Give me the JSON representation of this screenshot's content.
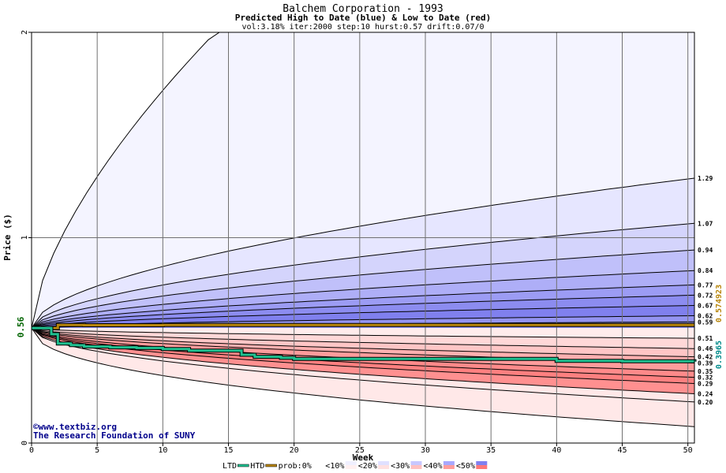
{
  "chart_data": {
    "type": "area",
    "title": "Balchem Corporation - 1993",
    "subtitle": "Predicted High to Date (blue) &  Low to Date (red)",
    "params": "vol:3.18% iter:2000 step:10 hurst:0.57 drift:0.07/0",
    "xlabel": "Week",
    "ylabel": "Price ($)",
    "xlim": [
      0,
      50.5
    ],
    "ylim": [
      0,
      2
    ],
    "x_ticks": [
      "0",
      "5",
      "10",
      "15",
      "20",
      "25",
      "30",
      "35",
      "40",
      "45",
      "50"
    ],
    "y_ticks": [
      "0",
      "1",
      "2"
    ],
    "start_price_label": "0.56",
    "start_price": 0.56,
    "right_vertical_labels": [
      {
        "text": "0.3965",
        "color": "#008b8b"
      },
      {
        "text": "0.574923",
        "color": "#b8860b"
      }
    ],
    "upper_quantiles": [
      {
        "label": "1.29",
        "end": 1.29,
        "curve": 0.55
      },
      {
        "label": "1.07",
        "end": 1.07,
        "curve": 0.55
      },
      {
        "label": "0.94",
        "end": 0.94,
        "curve": 0.55
      },
      {
        "label": "0.84",
        "end": 0.84,
        "curve": 0.55
      },
      {
        "label": "0.77",
        "end": 0.77,
        "curve": 0.55
      },
      {
        "label": "0.72",
        "end": 0.72,
        "curve": 0.55
      },
      {
        "label": "0.67",
        "end": 0.67,
        "curve": 0.55
      },
      {
        "label": "0.62",
        "end": 0.62,
        "curve": 0.55
      },
      {
        "label": "0.59",
        "end": 0.59,
        "curve": 0.55
      }
    ],
    "lower_quantiles": [
      {
        "label": "0.51",
        "end": 0.51,
        "curve": 0.5
      },
      {
        "label": "0.46",
        "end": 0.46,
        "curve": 0.5
      },
      {
        "label": "0.42",
        "end": 0.42,
        "curve": 0.5
      },
      {
        "label": "0.39",
        "end": 0.39,
        "curve": 0.5
      },
      {
        "label": "0.35",
        "end": 0.35,
        "curve": 0.5
      },
      {
        "label": "0.32",
        "end": 0.32,
        "curve": 0.5
      },
      {
        "label": "0.29",
        "end": 0.29,
        "curve": 0.5
      },
      {
        "label": "0.24",
        "end": 0.24,
        "curve": 0.5
      },
      {
        "label": "0.20",
        "end": 0.2,
        "curve": 0.5
      }
    ],
    "outer_high": {
      "reach_top_week": 14,
      "end": 2.0
    },
    "outer_low": {
      "end": 0.08
    },
    "htd_line": {
      "color": "#b8860b",
      "x": [
        0,
        1,
        2,
        3,
        4,
        10,
        20,
        30,
        40,
        50.5
      ],
      "y": [
        0.56,
        0.56,
        0.575,
        0.575,
        0.574,
        0.5749,
        0.5749,
        0.5749,
        0.5749,
        0.5749
      ]
    },
    "ltd_line": {
      "color": "#20c090",
      "x": [
        0,
        1,
        1.5,
        2,
        2.5,
        3,
        3.5,
        4,
        5,
        6,
        7,
        8,
        9,
        10,
        11,
        12,
        13,
        14,
        15,
        16,
        17,
        18,
        19,
        20,
        25,
        30,
        35,
        40,
        45,
        50.5
      ],
      "y": [
        0.56,
        0.56,
        0.53,
        0.485,
        0.485,
        0.477,
        0.476,
        0.47,
        0.47,
        0.466,
        0.466,
        0.463,
        0.463,
        0.458,
        0.458,
        0.45,
        0.45,
        0.45,
        0.45,
        0.43,
        0.42,
        0.42,
        0.415,
        0.41,
        0.41,
        0.41,
        0.41,
        0.4,
        0.398,
        0.3965
      ]
    },
    "legend": {
      "placement": "bottom",
      "items": [
        {
          "label": "LTD",
          "type": "line",
          "color": "#20c090"
        },
        {
          "label": "HTD",
          "type": "line",
          "color": "#b8860b"
        },
        {
          "label": "prob:0%",
          "type": "swatch",
          "colors": [
            "#ffffff",
            "#ffffff"
          ]
        },
        {
          "label": "<10%",
          "type": "swatch",
          "colors": [
            "#fff0f0",
            "#f0f0ff"
          ]
        },
        {
          "label": "<20%",
          "type": "swatch",
          "colors": [
            "#ffe0e0",
            "#e0e0ff"
          ]
        },
        {
          "label": "<30%",
          "type": "swatch",
          "colors": [
            "#ffc0c0",
            "#c8c8ff"
          ]
        },
        {
          "label": "<40%",
          "type": "swatch",
          "colors": [
            "#ff9c9c",
            "#a8a8ff"
          ]
        },
        {
          "label": "<50%",
          "type": "swatch",
          "colors": [
            "#ff7878",
            "#8080f0"
          ]
        }
      ]
    },
    "band_colors_blue": [
      "#f4f4ff",
      "#e6e6ff",
      "#d4d4fc",
      "#c0c0fa",
      "#aeaef7",
      "#9c9cf4",
      "#8c8cf0",
      "#8080ee",
      "#9494f2"
    ],
    "band_colors_red": [
      "#ffecec",
      "#ffd8d8",
      "#ffc6c6",
      "#ffb0b0",
      "#ff9c9c",
      "#ff8a8a",
      "#ff8080",
      "#ff9090",
      "#ffe8e8"
    ],
    "grid": true
  },
  "credit": {
    "copyright_symbol": "©",
    "site": "www.textbiz.org",
    "org": "The Research Foundation of SUNY"
  }
}
